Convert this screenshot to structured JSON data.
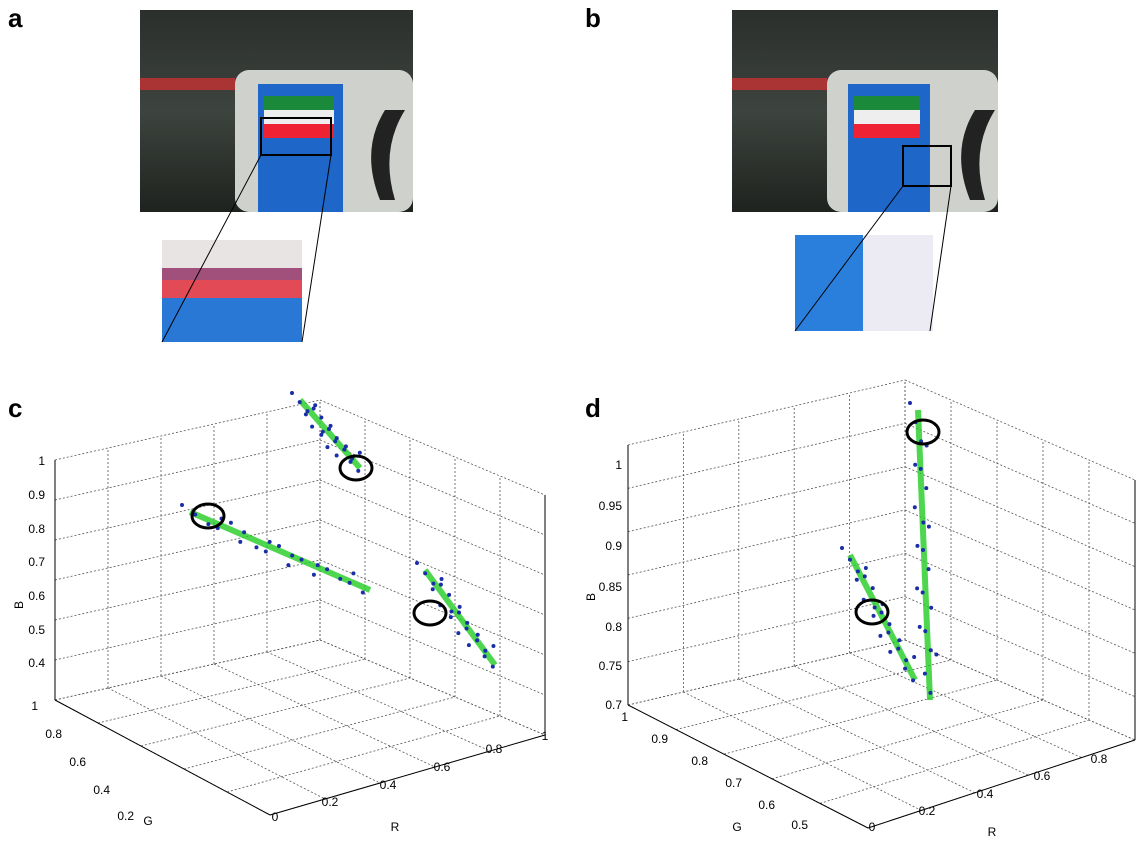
{
  "panels": [
    {
      "label": "a"
    },
    {
      "label": "b"
    },
    {
      "label": "c",
      "plot": {
        "z_label": "B",
        "z_ticks": [
          "1",
          "0.9",
          "0.8",
          "0.7",
          "0.6",
          "0.5",
          "0.4"
        ],
        "g_label": "G",
        "g_ticks": [
          "1",
          "0.8",
          "0.6",
          "0.4",
          "0.2"
        ],
        "r_label": "R",
        "r_ticks": [
          "0",
          "0.2",
          "0.4",
          "0.6",
          "0.8",
          "1"
        ]
      }
    },
    {
      "label": "d",
      "plot": {
        "z_label": "B",
        "z_ticks": [
          "1",
          "0.95",
          "0.9",
          "0.85",
          "0.8",
          "0.75",
          "0.7"
        ],
        "g_label": "G",
        "g_ticks": [
          "1",
          "0.9",
          "0.8",
          "0.7",
          "0.6",
          "0.5"
        ],
        "r_label": "R",
        "r_ticks": [
          "0",
          "0.2",
          "0.4",
          "0.6",
          "0.8"
        ]
      }
    }
  ]
}
